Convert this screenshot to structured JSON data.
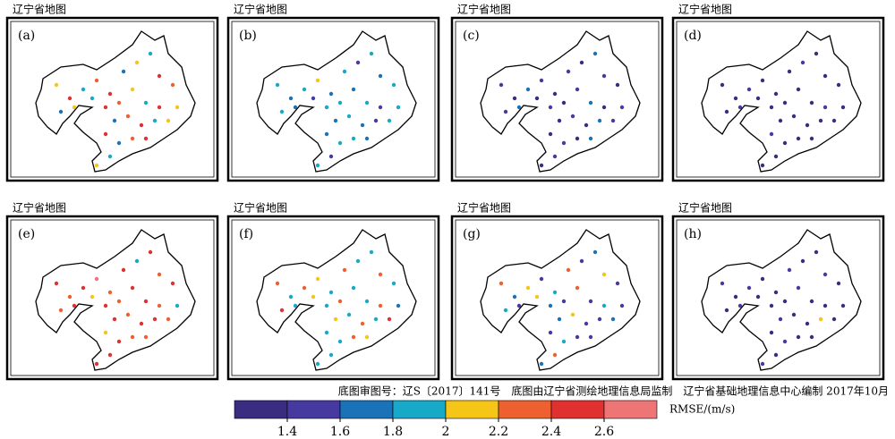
{
  "panels": [
    {
      "map_title": "辽宁省地图",
      "label": "(a)",
      "values": [
        2.1,
        2.5,
        1.9,
        2.3,
        2.5,
        1.7,
        2.1,
        1.9,
        2.5,
        2.3,
        1.7,
        2.1,
        1.9,
        2.5,
        2.3,
        2.1,
        1.9,
        2.5,
        2.1,
        1.7,
        2.3,
        2.5,
        1.9,
        2.1,
        2.5,
        1.7,
        2.3,
        1.9,
        2.5,
        2.1
      ]
    },
    {
      "map_title": "辽宁省地图",
      "label": "(b)",
      "values": [
        1.9,
        1.7,
        1.9,
        2.1,
        1.7,
        1.9,
        1.5,
        1.9,
        1.7,
        1.9,
        1.9,
        1.7,
        1.5,
        1.9,
        1.9,
        1.7,
        1.9,
        1.5,
        1.9,
        1.7,
        1.9,
        1.7,
        1.5,
        1.9,
        1.7,
        1.9,
        1.9,
        1.5,
        1.7,
        1.9
      ]
    },
    {
      "map_title": "辽宁省地图",
      "label": "(c)",
      "values": [
        1.5,
        1.3,
        1.7,
        1.5,
        1.3,
        1.5,
        1.3,
        1.7,
        1.5,
        1.3,
        1.5,
        1.7,
        1.3,
        1.5,
        1.3,
        1.5,
        1.7,
        1.3,
        1.5,
        1.3,
        1.5,
        1.3,
        1.7,
        1.5,
        1.3,
        1.5,
        1.3,
        1.5,
        1.7,
        1.3
      ]
    },
    {
      "map_title": "辽宁省地图",
      "label": "(d)",
      "values": [
        1.3,
        1.3,
        1.5,
        1.3,
        1.3,
        1.3,
        1.5,
        1.3,
        1.3,
        1.3,
        1.3,
        1.5,
        1.3,
        1.3,
        1.3,
        1.3,
        1.3,
        1.5,
        1.3,
        1.3,
        1.3,
        1.3,
        1.3,
        1.3,
        1.5,
        1.3,
        1.3,
        1.3,
        1.3,
        1.3
      ]
    },
    {
      "map_title": "辽宁省地图",
      "label": "(e)",
      "values": [
        2.5,
        2.3,
        2.5,
        2.7,
        2.3,
        2.5,
        1.9,
        2.5,
        2.3,
        2.5,
        2.3,
        2.5,
        2.1,
        2.5,
        2.3,
        2.5,
        2.5,
        2.3,
        1.9,
        2.5,
        2.3,
        2.5,
        2.5,
        2.3,
        2.1,
        2.5,
        2.3,
        2.5,
        2.3,
        2.5
      ]
    },
    {
      "map_title": "辽宁省地图",
      "label": "(f)",
      "values": [
        2.3,
        1.9,
        2.3,
        2.1,
        1.9,
        2.3,
        1.9,
        1.9,
        2.3,
        1.9,
        2.5,
        1.9,
        2.1,
        1.9,
        2.3,
        1.9,
        1.9,
        2.3,
        1.7,
        2.1,
        1.9,
        2.3,
        1.9,
        2.5,
        1.9,
        1.9,
        2.3,
        1.9,
        2.1,
        1.9
      ]
    },
    {
      "map_title": "辽宁省地图",
      "label": "(g)",
      "values": [
        2.3,
        1.7,
        2.1,
        1.5,
        1.9,
        2.3,
        1.5,
        1.7,
        2.1,
        1.5,
        1.9,
        1.5,
        2.1,
        1.7,
        1.5,
        2.3,
        1.5,
        1.9,
        1.5,
        1.7,
        2.1,
        1.5,
        1.5,
        1.7,
        1.5,
        1.9,
        1.5,
        2.3,
        1.5,
        1.7
      ]
    },
    {
      "map_title": "辽宁省地图",
      "label": "(h)",
      "values": [
        1.5,
        1.3,
        1.5,
        1.3,
        1.3,
        1.5,
        1.3,
        1.3,
        1.5,
        1.3,
        1.3,
        1.5,
        1.3,
        1.3,
        1.3,
        1.5,
        1.3,
        1.3,
        1.3,
        1.5,
        1.3,
        1.3,
        2.1,
        1.3,
        1.3,
        1.5,
        1.3,
        1.3,
        1.3,
        1.5
      ]
    }
  ],
  "footer": "底图审图号：辽S〔2017〕141号　底图由辽宁省测绘地理信息局监制　辽宁省基础地理信息中心编制  2017年10月",
  "colorbar": {
    "label": "RMSE/(m/s)",
    "colors": [
      "#3a2c80",
      "#463aa0",
      "#1a73b8",
      "#18a8c8",
      "#f5c518",
      "#ee6030",
      "#e03030",
      "#ee7575"
    ],
    "ticks": [
      1.4,
      1.6,
      1.8,
      2.0,
      2.2,
      2.4,
      2.6
    ]
  }
}
